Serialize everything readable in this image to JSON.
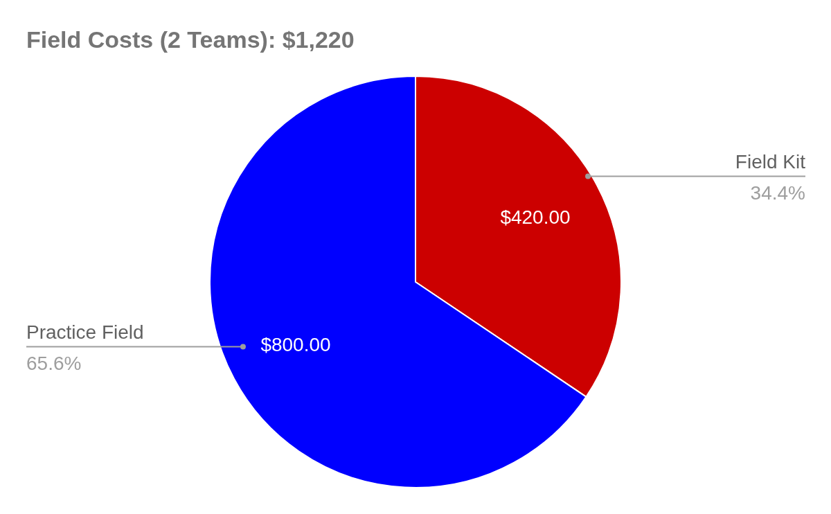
{
  "chart_data": {
    "type": "pie",
    "title": "Field Costs (2 Teams): $1,220",
    "categories": [
      "Field Kit",
      "Practice Field"
    ],
    "values": [
      420,
      800
    ],
    "colors": [
      "#cc0000",
      "#0000ff"
    ],
    "value_labels": [
      "$420.00",
      "$800.00"
    ],
    "annotations": [
      "34.4%",
      "65.6%"
    ]
  }
}
